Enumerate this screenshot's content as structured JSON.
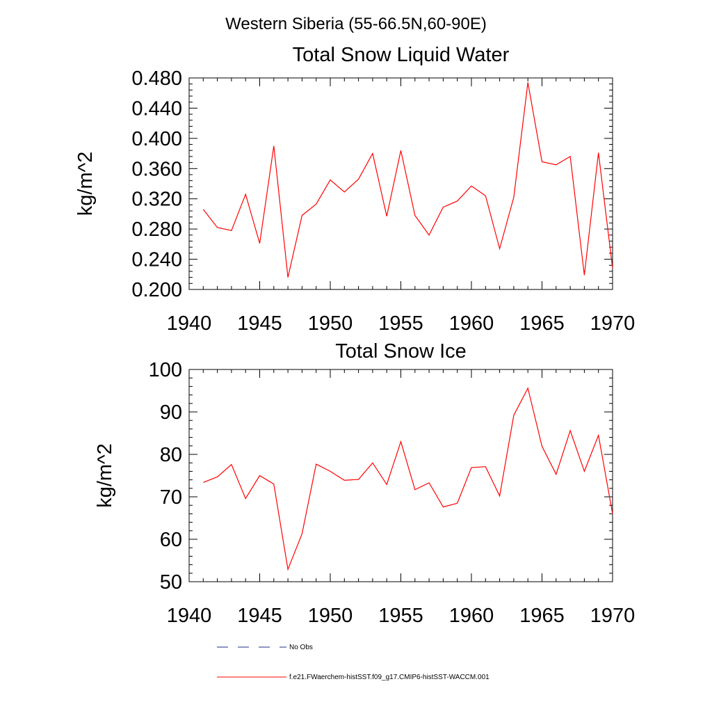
{
  "figure_title": "Western Siberia (55-66.5N,60-90E)",
  "colors": {
    "series": "#ff0000",
    "no_obs": "#1f2b8a",
    "axis": "#000000"
  },
  "chart_data": [
    {
      "type": "line",
      "title": "Total Snow Liquid Water",
      "xlabel": "",
      "ylabel": "kg/m^2",
      "xlim": [
        1940,
        1970
      ],
      "ylim": [
        0.2,
        0.48
      ],
      "x_ticks": [
        "1940",
        "1945",
        "1950",
        "1955",
        "1960",
        "1965",
        "1970"
      ],
      "y_ticks": [
        "0.200",
        "0.240",
        "0.280",
        "0.320",
        "0.360",
        "0.400",
        "0.440",
        "0.480"
      ],
      "grid": false,
      "x": [
        1941,
        1942,
        1943,
        1944,
        1945,
        1946,
        1947,
        1948,
        1949,
        1950,
        1951,
        1952,
        1953,
        1954,
        1955,
        1956,
        1957,
        1958,
        1959,
        1960,
        1961,
        1962,
        1963,
        1964,
        1965,
        1966,
        1967,
        1968,
        1969,
        1970
      ],
      "series": [
        {
          "name": "f.e21.FWaerchem-histSST.f09_g17.CMIP6-histSST-WACCM.001",
          "values": [
            0.306,
            0.282,
            0.278,
            0.326,
            0.261,
            0.39,
            0.216,
            0.298,
            0.313,
            0.345,
            0.329,
            0.346,
            0.38,
            0.297,
            0.384,
            0.298,
            0.272,
            0.309,
            0.317,
            0.337,
            0.324,
            0.254,
            0.322,
            0.474,
            0.369,
            0.365,
            0.376,
            0.219,
            0.381,
            0.228
          ]
        }
      ]
    },
    {
      "type": "line",
      "title": "Total Snow Ice",
      "xlabel": "",
      "ylabel": "kg/m^2",
      "xlim": [
        1940,
        1970
      ],
      "ylim": [
        50,
        100
      ],
      "x_ticks": [
        "1940",
        "1945",
        "1950",
        "1955",
        "1960",
        "1965",
        "1970"
      ],
      "y_ticks": [
        "50",
        "60",
        "70",
        "80",
        "90",
        "100"
      ],
      "grid": false,
      "x": [
        1941,
        1942,
        1943,
        1944,
        1945,
        1946,
        1947,
        1948,
        1949,
        1950,
        1951,
        1952,
        1953,
        1954,
        1955,
        1956,
        1957,
        1958,
        1959,
        1960,
        1961,
        1962,
        1963,
        1964,
        1965,
        1966,
        1967,
        1968,
        1969,
        1970
      ],
      "series": [
        {
          "name": "f.e21.FWaerchem-histSST.f09_g17.CMIP6-histSST-WACCM.001",
          "values": [
            73.4,
            74.7,
            77.6,
            69.6,
            75.0,
            73.0,
            52.9,
            61.3,
            77.7,
            76.0,
            73.9,
            74.1,
            78.0,
            72.9,
            83.0,
            71.7,
            73.3,
            67.6,
            68.5,
            76.9,
            77.1,
            70.2,
            89.2,
            95.6,
            81.9,
            75.3,
            85.6,
            76.0,
            84.5,
            66.0
          ]
        }
      ]
    }
  ],
  "legend": {
    "placement": "bottom",
    "items": [
      {
        "label": "No Obs",
        "style": "dashed",
        "color": "#1f2b8a"
      },
      {
        "label": "f.e21.FWaerchem-histSST.f09_g17.CMIP6-histSST-WACCM.001",
        "style": "solid",
        "color": "#ff0000"
      }
    ]
  }
}
